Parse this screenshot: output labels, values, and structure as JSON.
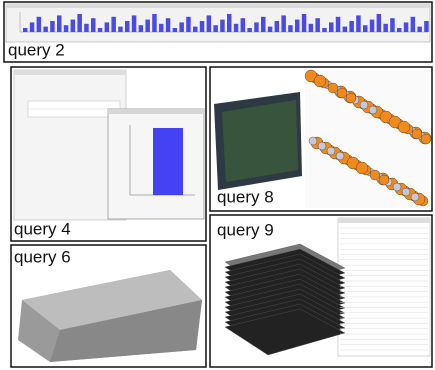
{
  "panels": [
    {
      "label": "query 2"
    },
    {
      "label": "query 4"
    },
    {
      "label": "query 8"
    },
    {
      "label": "query 6"
    },
    {
      "label": "query 9"
    }
  ]
}
